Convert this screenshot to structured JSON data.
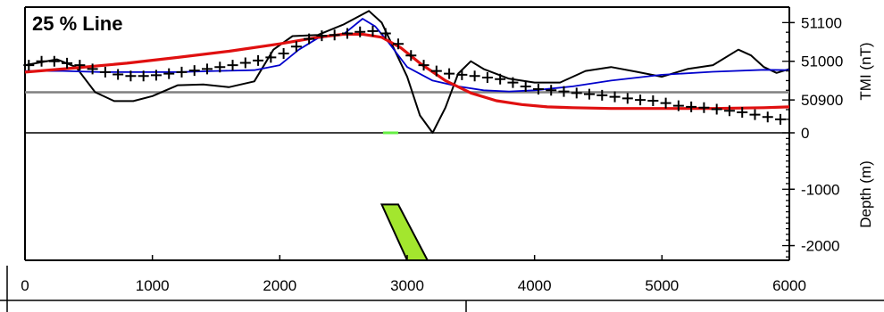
{
  "chart_data": {
    "type": "line",
    "title": "25 % Line",
    "xlim": [
      0,
      6000
    ],
    "x_ticks": [
      "0",
      "1000",
      "2000",
      "3000",
      "4000",
      "5000",
      "6000"
    ],
    "tmi_panel": {
      "ylabel": "TMI (nT)",
      "ylim": [
        50815,
        51140
      ],
      "y_ticks": [
        "51100",
        "51000",
        "50900"
      ],
      "y_tick_values": [
        51100,
        51000,
        50900
      ],
      "reference_line": {
        "y": 50920,
        "color": "#808080"
      },
      "series": [
        {
          "style": "line",
          "color": "#000000",
          "x": [
            0,
            250,
            400,
            550,
            700,
            850,
            1000,
            1200,
            1400,
            1600,
            1800,
            1950,
            2100,
            2300,
            2500,
            2700,
            2800,
            2900,
            3000,
            3100,
            3200,
            3300,
            3400,
            3500,
            3600,
            3800,
            4000,
            4200,
            4400,
            4600,
            4800,
            5000,
            5200,
            5400,
            5600,
            5700,
            5800,
            5900,
            6000
          ],
          "y": [
            50990,
            51005,
            50985,
            50920,
            50897,
            50897,
            50910,
            50938,
            50940,
            50933,
            50948,
            51030,
            51065,
            51068,
            51095,
            51130,
            51100,
            51030,
            50960,
            50860,
            50815,
            50880,
            50968,
            51000,
            50980,
            50955,
            50945,
            50945,
            50975,
            50985,
            50973,
            50960,
            50980,
            50990,
            51030,
            51015,
            50985,
            50970,
            50980
          ]
        },
        {
          "style": "line",
          "color": "#0000cc",
          "x": [
            0,
            300,
            600,
            900,
            1200,
            1500,
            1800,
            2000,
            2150,
            2300,
            2500,
            2650,
            2750,
            2850,
            3000,
            3200,
            3400,
            3600,
            3800,
            4000,
            4300,
            4600,
            5000,
            5400,
            5800,
            6000
          ],
          "y": [
            50975,
            50975,
            50972,
            50972,
            50972,
            50975,
            50977,
            50990,
            51030,
            51060,
            51070,
            51110,
            51090,
            51050,
            50985,
            50950,
            50935,
            50925,
            50922,
            50925,
            50935,
            50950,
            50965,
            50973,
            50978,
            50977
          ]
        },
        {
          "style": "line",
          "color": "#e01010",
          "x": [
            0,
            400,
            800,
            1200,
            1600,
            2000,
            2300,
            2500,
            2650,
            2800,
            2950,
            3100,
            3300,
            3500,
            3700,
            3900,
            4100,
            4300,
            4600,
            5000,
            5400,
            5800,
            6000
          ],
          "y": [
            50972,
            50983,
            50995,
            51010,
            51026,
            51045,
            51062,
            51070,
            51070,
            51062,
            51035,
            50995,
            50950,
            50918,
            50898,
            50888,
            50882,
            50880,
            50878,
            50878,
            50878,
            50880,
            50882
          ]
        },
        {
          "style": "markers",
          "marker": "+",
          "color": "#000000",
          "x": [
            30,
            130,
            230,
            330,
            430,
            530,
            630,
            730,
            830,
            930,
            1030,
            1130,
            1230,
            1330,
            1430,
            1530,
            1630,
            1730,
            1830,
            1930,
            2030,
            2130,
            2230,
            2330,
            2430,
            2530,
            2630,
            2730,
            2830,
            2930,
            3030,
            3130,
            3230,
            3330,
            3430,
            3530,
            3630,
            3730,
            3830,
            3930,
            4030,
            4130,
            4230,
            4330,
            4430,
            4530,
            4630,
            4730,
            4830,
            4930,
            5030,
            5130,
            5230,
            5330,
            5430,
            5530,
            5630,
            5730,
            5830,
            5930
          ],
          "y": [
            50990,
            51000,
            51000,
            50995,
            50990,
            50980,
            50972,
            50966,
            50962,
            50962,
            50964,
            50968,
            50972,
            50976,
            50980,
            50985,
            50990,
            50996,
            51002,
            51010,
            51020,
            51038,
            51058,
            51066,
            51068,
            51072,
            51076,
            51078,
            51072,
            51045,
            51015,
            50990,
            50975,
            50968,
            50965,
            50962,
            50958,
            50954,
            50945,
            50935,
            50928,
            50925,
            50922,
            50918,
            50915,
            50912,
            50908,
            50904,
            50900,
            50898,
            50892,
            50885,
            50882,
            50880,
            50876,
            50872,
            50868,
            50862,
            50856,
            50850
          ]
        }
      ]
    },
    "depth_panel": {
      "ylabel": "Depth (m)",
      "ylim": [
        -2260,
        0
      ],
      "y_ticks": [
        "0",
        "-1000",
        "-2000"
      ],
      "y_tick_values": [
        0,
        -1000,
        -2000
      ],
      "surface_marker": {
        "x0": 2810,
        "x1": 2930,
        "color": "#66ee44"
      },
      "dike": {
        "color": "#a3e62e",
        "outline": "#000000",
        "vertices": [
          [
            2800,
            -1270
          ],
          [
            2930,
            -1270
          ],
          [
            3160,
            -2260
          ],
          [
            3000,
            -2260
          ]
        ]
      }
    }
  }
}
